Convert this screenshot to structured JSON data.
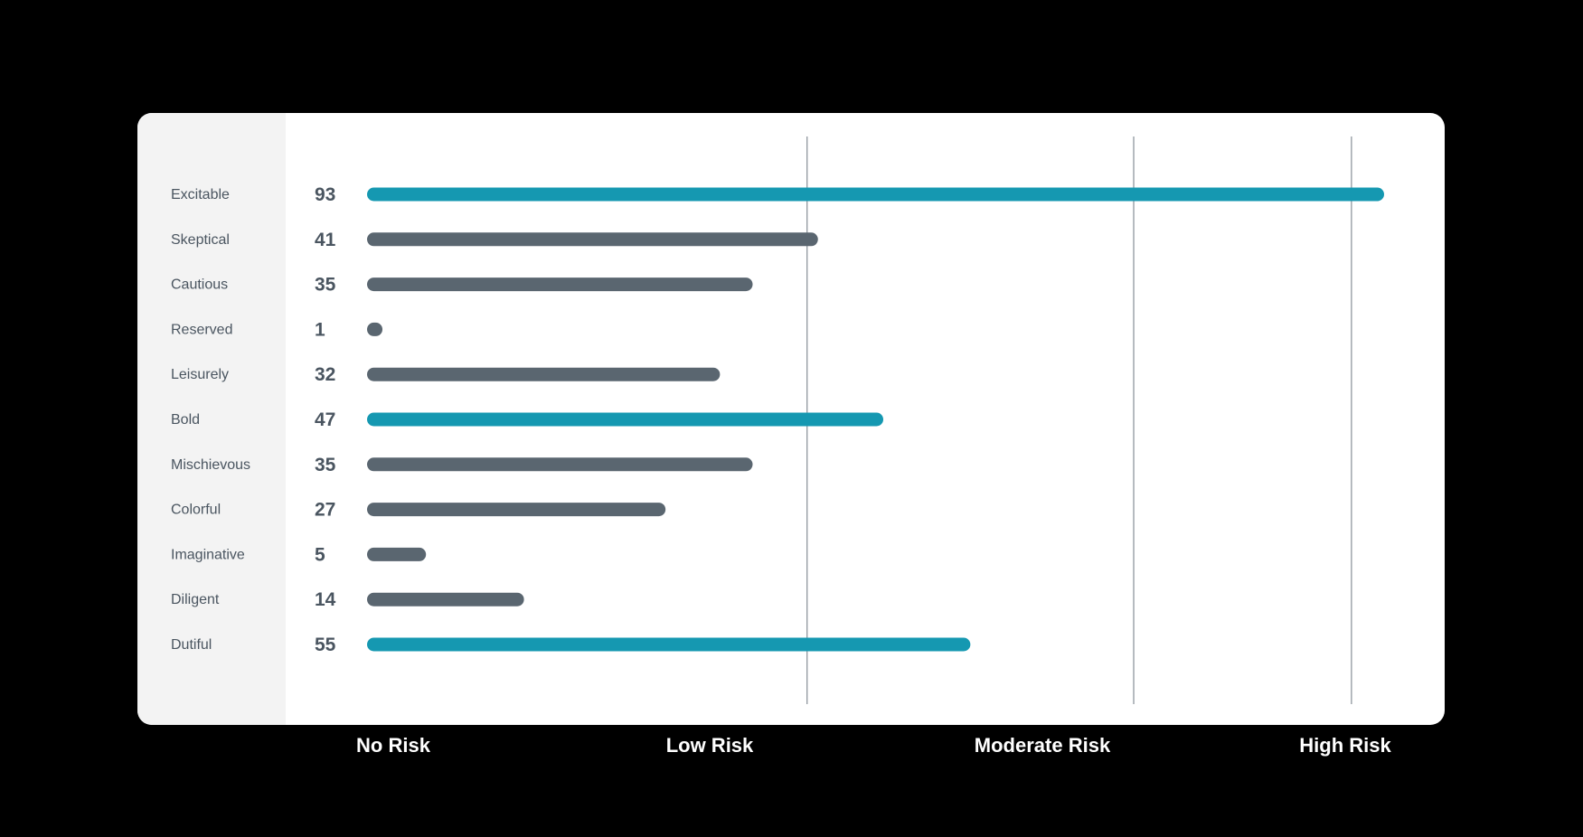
{
  "chart_data": {
    "type": "bar",
    "orientation": "horizontal",
    "categories": [
      "Excitable",
      "Skeptical",
      "Cautious",
      "Reserved",
      "Leisurely",
      "Bold",
      "Mischievous",
      "Colorful",
      "Imaginative",
      "Diligent",
      "Dutiful"
    ],
    "values": [
      93,
      41,
      35,
      1,
      32,
      47,
      35,
      27,
      5,
      14,
      55
    ],
    "highlighted": [
      true,
      false,
      false,
      false,
      false,
      true,
      false,
      false,
      false,
      false,
      true
    ],
    "xlim": [
      0,
      93
    ],
    "risk_levels": [
      {
        "label": "No Risk",
        "threshold": 0
      },
      {
        "label": "Low Risk",
        "threshold": 40
      },
      {
        "label": "Moderate Risk",
        "threshold": 70
      },
      {
        "label": "High Risk",
        "threshold": 90
      }
    ],
    "colors": {
      "highlight": "#1598b1",
      "normal": "#5a6670",
      "gridline": "#8f979e"
    },
    "grid": "vertical lines at risk thresholds",
    "title": "",
    "xlabel": "",
    "ylabel": ""
  }
}
